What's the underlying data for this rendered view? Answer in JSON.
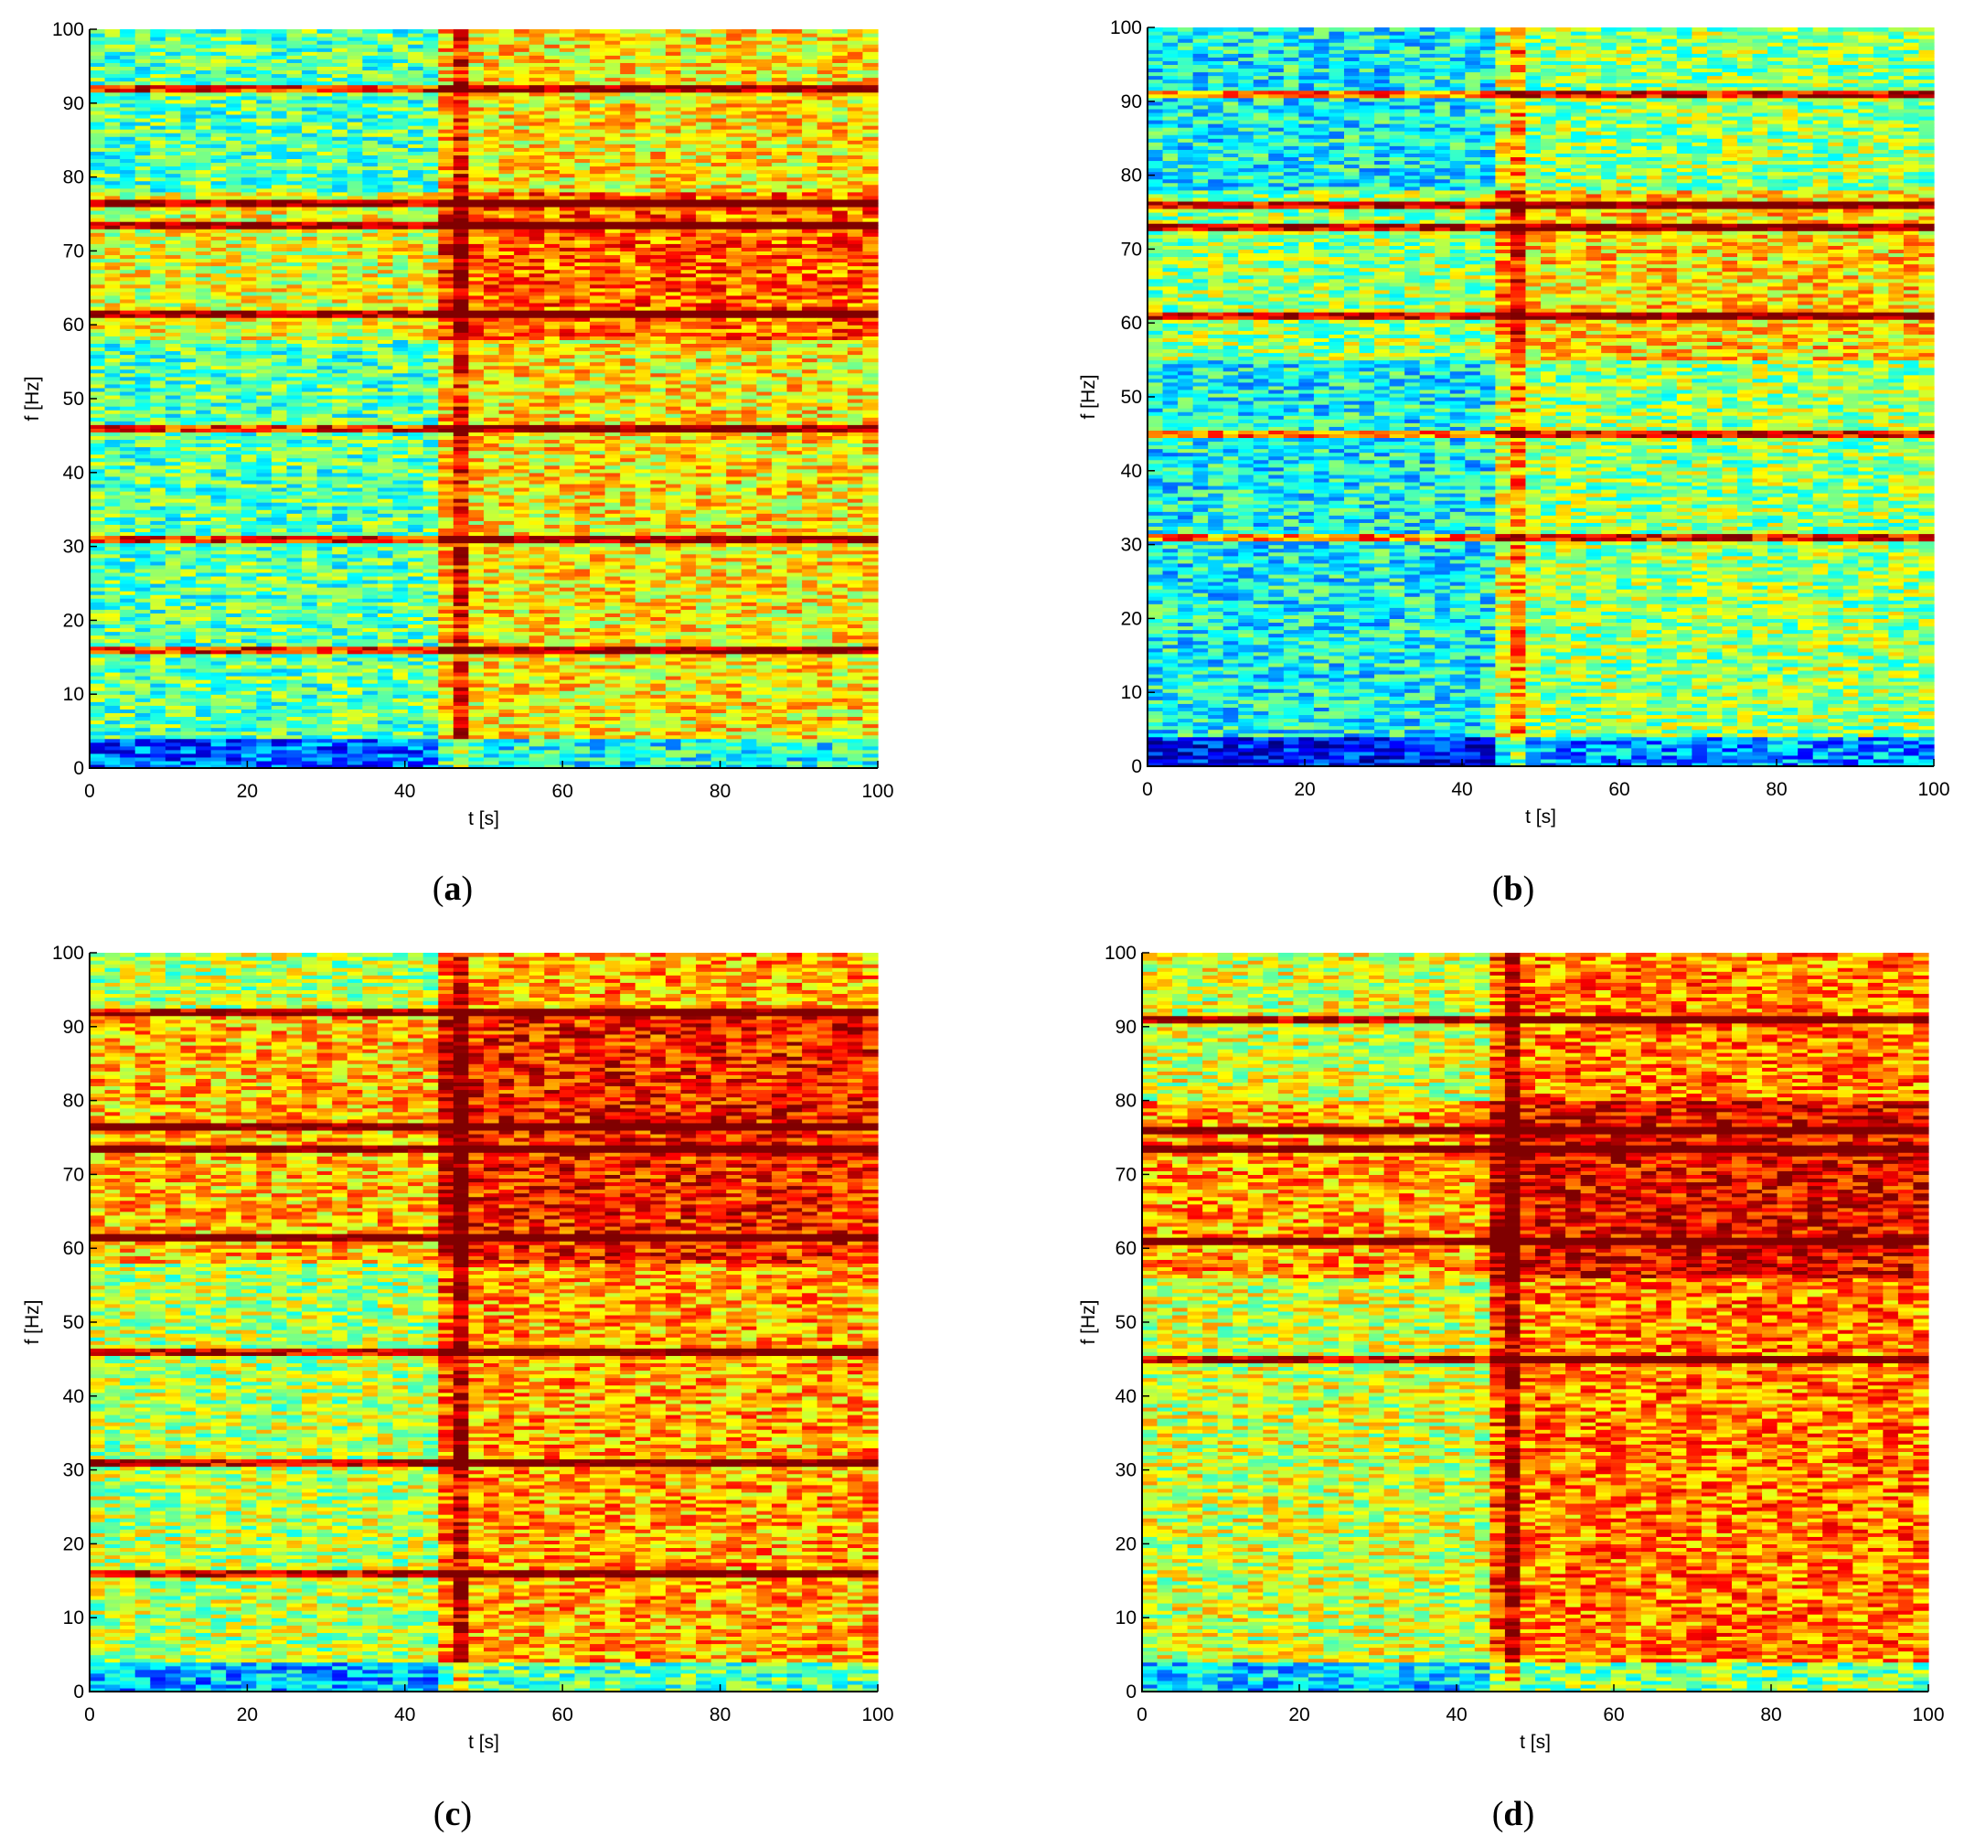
{
  "chart_data": [
    {
      "type": "heatmap",
      "panel_label": "a",
      "xlabel": "t [s]",
      "ylabel": "f [Hz]",
      "xlim": [
        0,
        100
      ],
      "ylim": [
        0,
        100
      ],
      "xticks": [
        0,
        20,
        40,
        60,
        80,
        100
      ],
      "yticks": [
        0,
        10,
        20,
        30,
        40,
        50,
        60,
        70,
        80,
        90,
        100
      ],
      "colormap": "jet",
      "event_time": 46,
      "line_frequencies": [
        16,
        31,
        46,
        61.5,
        73.5,
        76.5,
        92
      ],
      "broad_bands": [
        [
          58,
          78
        ]
      ],
      "post_event_gain": 0.18,
      "base_level": 0.46
    },
    {
      "type": "heatmap",
      "panel_label": "b",
      "xlabel": "t [s]",
      "ylabel": "f [Hz]",
      "xlim": [
        0,
        100
      ],
      "ylim": [
        0,
        100
      ],
      "xticks": [
        0,
        20,
        40,
        60,
        80,
        100
      ],
      "yticks": [
        0,
        10,
        20,
        30,
        40,
        50,
        60,
        70,
        80,
        90,
        100
      ],
      "colormap": "jet",
      "event_time": 46,
      "line_frequencies": [
        31,
        45,
        61,
        73,
        76,
        91
      ],
      "broad_bands": [
        [
          55,
          78
        ]
      ],
      "post_event_gain": 0.14,
      "base_level": 0.38
    },
    {
      "type": "heatmap",
      "panel_label": "c",
      "xlabel": "t [s]",
      "ylabel": "f [Hz]",
      "xlim": [
        0,
        100
      ],
      "ylim": [
        0,
        100
      ],
      "xticks": [
        0,
        20,
        40,
        60,
        80,
        100
      ],
      "yticks": [
        0,
        10,
        20,
        30,
        40,
        50,
        60,
        70,
        80,
        90,
        100
      ],
      "colormap": "jet",
      "event_time": 46,
      "line_frequencies": [
        16,
        31,
        46,
        61.5,
        73.5,
        76.5,
        92
      ],
      "broad_bands": [
        [
          58,
          92
        ]
      ],
      "post_event_gain": 0.16,
      "base_level": 0.55
    },
    {
      "type": "heatmap",
      "panel_label": "d",
      "xlabel": "t [s]",
      "ylabel": "f [Hz]",
      "xlim": [
        0,
        100
      ],
      "ylim": [
        0,
        100
      ],
      "xticks": [
        0,
        20,
        40,
        60,
        80,
        100
      ],
      "yticks": [
        0,
        10,
        20,
        30,
        40,
        50,
        60,
        70,
        80,
        90,
        100
      ],
      "colormap": "jet",
      "event_time": 46,
      "line_frequencies": [
        45,
        61,
        73.5,
        76,
        91
      ],
      "broad_bands": [
        [
          56,
          80
        ]
      ],
      "post_event_gain": 0.17,
      "base_level": 0.58
    }
  ],
  "captions": {
    "a": "a",
    "b": "b",
    "c": "c",
    "d": "d"
  }
}
